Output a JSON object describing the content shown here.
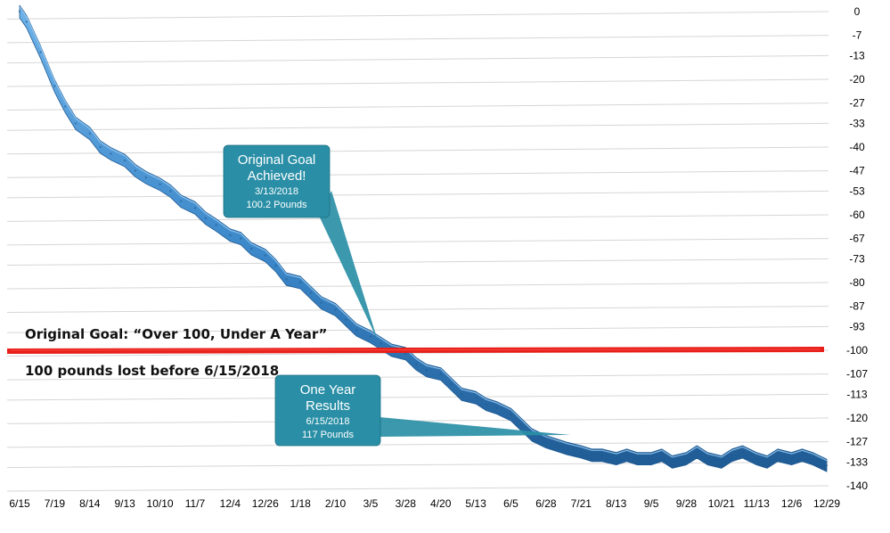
{
  "chart_data": {
    "type": "area",
    "x_labels": [
      "6/15",
      "7/19",
      "8/14",
      "9/13",
      "10/10",
      "11/7",
      "12/4",
      "12/26",
      "1/18",
      "2/10",
      "3/5",
      "3/28",
      "4/20",
      "5/13",
      "6/5",
      "6/28",
      "7/21",
      "8/13",
      "9/5",
      "9/28",
      "10/21",
      "11/13",
      "12/6",
      "12/29"
    ],
    "y_ticks": [
      0,
      -7,
      -13,
      -20,
      -27,
      -33,
      -40,
      -47,
      -53,
      -60,
      -67,
      -73,
      -80,
      -87,
      -93,
      -100,
      -107,
      -113,
      -120,
      -127,
      -133,
      -140
    ],
    "ylim": [
      -140,
      0
    ],
    "grid": true,
    "series": [
      {
        "x": [
          0,
          0.2,
          0.6,
          1,
          1.3,
          1.6,
          2,
          2.3,
          2.6,
          3,
          3.3,
          3.6,
          4,
          4.3,
          4.6,
          5,
          5.3,
          5.6,
          6,
          6.3,
          6.6,
          7,
          7.3,
          7.6,
          8,
          8.3,
          8.6,
          9,
          9.3,
          9.6,
          10,
          10.3,
          10.6,
          11,
          11.3,
          11.6,
          12,
          12.3,
          12.6,
          13,
          13.3,
          13.6,
          14,
          14.3,
          14.6,
          15,
          15.3,
          15.6,
          16,
          16.3,
          16.6,
          17,
          17.3,
          17.6,
          18,
          18.3,
          18.6,
          19,
          19.3,
          19.6,
          20,
          20.3,
          20.6,
          21,
          21.3,
          21.6,
          22,
          22.3,
          22.6,
          23
        ],
        "y": [
          0,
          -3,
          -12,
          -22,
          -28,
          -33,
          -36,
          -40,
          -42,
          -44,
          -47,
          -49,
          -51,
          -53,
          -56,
          -58,
          -61,
          -63,
          -66,
          -67,
          -70,
          -72,
          -75,
          -79,
          -80,
          -83,
          -86,
          -88,
          -91,
          -94,
          -96,
          -98,
          -100,
          -101,
          -104,
          -106,
          -107,
          -110,
          -113,
          -114,
          -116,
          -117,
          -119,
          -122,
          -125,
          -127,
          -128,
          -129,
          -130,
          -131,
          -131,
          -132,
          -131,
          -132,
          -132,
          -131,
          -133,
          -132,
          -130,
          -132,
          -133,
          -131,
          -130,
          -132,
          -133,
          -131,
          -132,
          -131,
          -132,
          -134
        ]
      }
    ],
    "goal_line": {
      "value": -100,
      "label": "Original Goal: “Over 100, Under A Year”",
      "sublabel": "100 pounds lost before 6/15/2018"
    },
    "annotations": [
      {
        "title_lines": [
          "Original Goal",
          "Achieved!"
        ],
        "lines": [
          "3/13/2018",
          "100.2 Pounds"
        ],
        "target_x": 10.2,
        "target_y": -97
      },
      {
        "title_lines": [
          "One Year",
          "Results"
        ],
        "lines": [
          "6/15/2018",
          "117 Pounds"
        ],
        "target_x": 15.7,
        "target_y": -125
      }
    ],
    "colors": {
      "series": "#3a86c8",
      "series_dark": "#1f5a93",
      "goal_line": "#e8201b",
      "callout": "#2a8fa6",
      "grid": "#d6d6d6"
    }
  }
}
